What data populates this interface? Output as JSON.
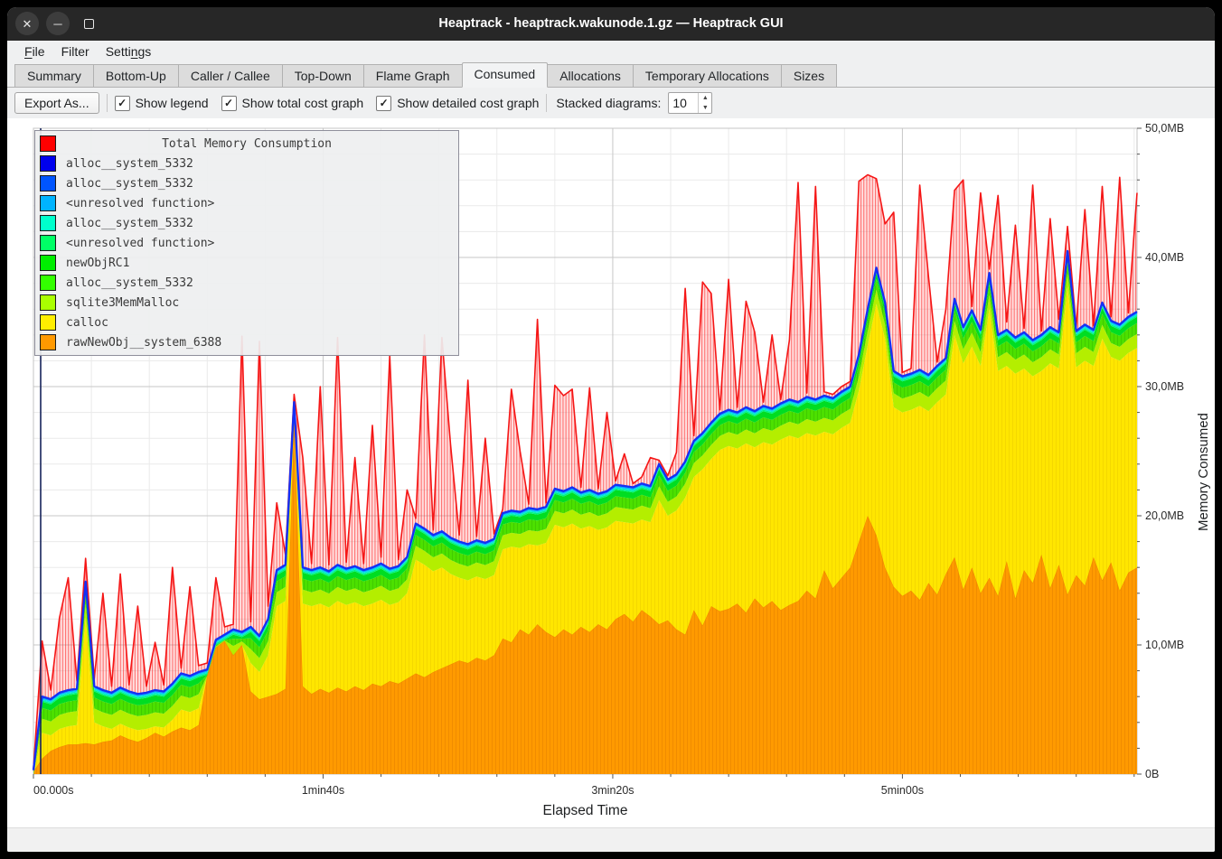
{
  "window": {
    "title": "Heaptrack - heaptrack.wakunode.1.gz — Heaptrack GUI",
    "controls": [
      {
        "name": "close",
        "glyph": "✕"
      },
      {
        "name": "minimize",
        "glyph": "─"
      },
      {
        "name": "maximize",
        "glyph": ""
      }
    ]
  },
  "menu": {
    "items": [
      {
        "label": "File",
        "mnemonic": 0
      },
      {
        "label": "Filter",
        "mnemonic": -1
      },
      {
        "label": "Settings",
        "mnemonic": 5
      }
    ]
  },
  "tabs": [
    {
      "label": "Summary",
      "active": false
    },
    {
      "label": "Bottom-Up",
      "active": false
    },
    {
      "label": "Caller / Callee",
      "active": false
    },
    {
      "label": "Top-Down",
      "active": false
    },
    {
      "label": "Flame Graph",
      "active": false
    },
    {
      "label": "Consumed",
      "active": true
    },
    {
      "label": "Allocations",
      "active": false
    },
    {
      "label": "Temporary Allocations",
      "active": false
    },
    {
      "label": "Sizes",
      "active": false
    }
  ],
  "toolbar": {
    "export_label": "Export As...",
    "checkboxes": [
      {
        "label": "Show legend",
        "checked": true
      },
      {
        "label": "Show total cost graph",
        "checked": true
      },
      {
        "label": "Show detailed cost graph",
        "checked": true
      }
    ],
    "stacked_label": "Stacked diagrams:",
    "stacked_value": "10"
  },
  "chart_data": {
    "type": "area",
    "xlabel": "Elapsed Time",
    "ylabel": "Memory Consumed",
    "ylim": [
      0,
      50
    ],
    "x_range_s": [
      0,
      381
    ],
    "t_step": 3,
    "minor_y_step": 2,
    "minor_x_step": 20,
    "grid": true,
    "y_ticks": [
      {
        "v": 0,
        "label": "0B"
      },
      {
        "v": 10,
        "label": "10,0MB"
      },
      {
        "v": 20,
        "label": "20,0MB"
      },
      {
        "v": 30,
        "label": "30,0MB"
      },
      {
        "v": 40,
        "label": "40,0MB"
      },
      {
        "v": 50,
        "label": "50,0MB"
      }
    ],
    "x_ticks": [
      {
        "t": 0,
        "label": "00.000s"
      },
      {
        "t": 100,
        "label": "1min40s"
      },
      {
        "t": 200,
        "label": "3min20s"
      },
      {
        "t": 300,
        "label": "5min00s"
      }
    ],
    "legend": {
      "rows": [
        {
          "label": "Total Memory Consumption",
          "color": "#ff0000",
          "title": true
        },
        {
          "label": "alloc__system_5332",
          "color": "#0000ee",
          "title": false
        },
        {
          "label": "alloc__system_5332",
          "color": "#0055ff",
          "title": false
        },
        {
          "label": "<unresolved function>",
          "color": "#00b4ff",
          "title": false
        },
        {
          "label": "alloc__system_5332",
          "color": "#00ffcc",
          "title": false
        },
        {
          "label": "<unresolved function>",
          "color": "#00ff66",
          "title": false
        },
        {
          "label": "newObjRC1",
          "color": "#00ee00",
          "title": false
        },
        {
          "label": "alloc__system_5332",
          "color": "#33ff00",
          "title": false
        },
        {
          "label": "sqlite3MemMalloc",
          "color": "#aaff00",
          "title": false
        },
        {
          "label": "calloc",
          "color": "#ffee00",
          "title": false
        },
        {
          "label": "rawNewObj__system_6388",
          "color": "#ff9900",
          "title": false
        }
      ]
    },
    "series": [
      {
        "name": "rawNewObj__system_6388",
        "role": "orange_top",
        "color": "#ff9a00",
        "values": [
          0.2,
          1.2,
          1.8,
          2.1,
          2.3,
          2.3,
          2.4,
          2.3,
          2.5,
          2.6,
          3.0,
          2.7,
          2.5,
          2.8,
          3.2,
          2.9,
          3.3,
          3.6,
          3.4,
          3.8,
          7.6,
          9.8,
          10.3,
          9.2,
          10.0,
          6.4,
          5.8,
          6.0,
          6.2,
          6.6,
          27.5,
          6.8,
          6.2,
          6.6,
          6.3,
          6.7,
          6.4,
          6.8,
          6.5,
          7.0,
          6.8,
          7.2,
          7.0,
          7.4,
          7.8,
          7.5,
          7.9,
          8.2,
          8.5,
          8.8,
          8.6,
          9.0,
          8.8,
          9.2,
          10.5,
          10.2,
          11.2,
          10.8,
          11.6,
          11.0,
          10.6,
          11.2,
          10.8,
          11.4,
          11.0,
          11.6,
          11.2,
          12.0,
          12.4,
          11.8,
          12.7,
          12.2,
          11.6,
          11.9,
          11.2,
          10.8,
          12.7,
          11.5,
          13.0,
          12.6,
          12.8,
          13.2,
          12.5,
          13.6,
          12.9,
          13.4,
          12.7,
          13.1,
          13.4,
          14.2,
          13.6,
          15.8,
          14.4,
          15.2,
          16.0,
          18.0,
          20.0,
          18.5,
          16.0,
          14.5,
          13.8,
          14.2,
          13.5,
          14.8,
          13.9,
          15.5,
          16.8,
          14.3,
          16.0,
          14.0,
          15.2,
          13.8,
          16.5,
          13.6,
          15.8,
          14.8,
          17.0,
          14.4,
          16.2,
          13.9,
          15.4,
          14.6,
          16.8,
          15.0,
          16.4,
          14.2,
          15.6,
          16.0
        ]
      },
      {
        "name": "consumed_stack_top",
        "role": "blue_top",
        "color": "#1430f5",
        "values": [
          0.3,
          6.0,
          5.8,
          6.3,
          6.5,
          6.6,
          14.9,
          6.8,
          6.5,
          6.3,
          6.7,
          6.4,
          6.2,
          6.3,
          6.5,
          6.4,
          7.0,
          7.8,
          7.6,
          7.9,
          8.1,
          10.4,
          10.8,
          11.2,
          11.0,
          11.4,
          10.7,
          12.0,
          15.8,
          16.2,
          28.8,
          16.0,
          15.8,
          16.0,
          15.7,
          16.2,
          15.9,
          16.1,
          15.8,
          16.0,
          16.3,
          15.9,
          16.1,
          16.8,
          19.4,
          19.0,
          18.5,
          18.8,
          18.3,
          18.0,
          17.8,
          18.1,
          17.9,
          18.2,
          20.2,
          20.4,
          20.3,
          20.6,
          20.5,
          20.7,
          22.1,
          21.9,
          22.2,
          21.8,
          22.0,
          21.7,
          21.9,
          22.4,
          22.3,
          22.2,
          22.5,
          22.3,
          24.0,
          22.8,
          23.2,
          24.2,
          25.8,
          26.4,
          27.2,
          27.9,
          28.2,
          28.0,
          28.4,
          28.1,
          28.5,
          28.3,
          28.7,
          29.0,
          28.8,
          29.2,
          29.0,
          29.3,
          29.1,
          29.6,
          30.0,
          32.5,
          36.0,
          39.2,
          36.5,
          31.2,
          30.8,
          31.0,
          31.3,
          30.9,
          31.6,
          32.2,
          36.8,
          34.6,
          35.9,
          34.4,
          38.8,
          34.0,
          34.4,
          33.8,
          34.2,
          33.6,
          34.0,
          34.6,
          34.2,
          40.5,
          34.3,
          34.8,
          34.4,
          36.5,
          35.1,
          34.8,
          35.4,
          35.8
        ]
      },
      {
        "name": "Total Memory Consumption",
        "role": "red_top",
        "color": "#f51616",
        "values": [
          0.4,
          10.3,
          6.5,
          12.1,
          15.2,
          7.2,
          16.7,
          7.4,
          14.0,
          6.8,
          15.5,
          6.9,
          13.0,
          6.8,
          10.2,
          6.9,
          16.0,
          8.2,
          14.5,
          8.4,
          8.6,
          15.2,
          11.4,
          11.6,
          33.9,
          11.8,
          33.5,
          13.0,
          21.0,
          17.0,
          29.4,
          24.5,
          16.3,
          30.0,
          16.2,
          33.8,
          16.4,
          24.5,
          16.3,
          27.0,
          16.8,
          32.4,
          16.6,
          22.0,
          19.8,
          34.0,
          18.9,
          33.8,
          25.5,
          18.5,
          30.5,
          18.4,
          26.0,
          18.6,
          20.5,
          29.8,
          25.0,
          20.9,
          35.2,
          21.0,
          30.1,
          29.3,
          29.8,
          22.2,
          29.9,
          22.1,
          28.0,
          22.7,
          24.8,
          22.5,
          23.0,
          24.5,
          24.3,
          23.1,
          24.9,
          37.6,
          26.2,
          38.1,
          37.2,
          28.2,
          38.3,
          28.4,
          36.6,
          34.2,
          28.8,
          34.0,
          29.0,
          33.6,
          45.8,
          29.5,
          45.5,
          29.6,
          29.4,
          30.0,
          30.4,
          45.9,
          46.4,
          46.1,
          42.6,
          43.5,
          31.1,
          31.4,
          45.6,
          38.5,
          31.9,
          36.0,
          45.2,
          46.0,
          36.2,
          45.0,
          39.1,
          44.8,
          35.0,
          42.5,
          34.5,
          45.6,
          34.3,
          43.0,
          35.2,
          42.4,
          34.6,
          43.7,
          34.7,
          45.5,
          35.4,
          46.2,
          35.7,
          45.0
        ]
      }
    ],
    "band_model": {
      "green_stack_mb": 2.4,
      "cyan_stack_mb": 0.4,
      "calloc_color": "#ffe600",
      "green_bands": [
        {
          "name": "sqlite3MemMalloc",
          "color": "#b4ee00",
          "frac": 0.45
        },
        {
          "name": "alloc__system_5332",
          "color": "#4ce000",
          "frac": 0.35
        },
        {
          "name": "newObjRC1",
          "color": "#00dd22",
          "frac": 0.2
        }
      ],
      "cyan_bands": [
        {
          "name": "<unresolved function>",
          "color": "#00f582",
          "frac": 0.3
        },
        {
          "name": "alloc__system_5332",
          "color": "#00e8d4",
          "frac": 0.25
        },
        {
          "name": "<unresolved function>",
          "color": "#00b4ff",
          "frac": 0.25
        },
        {
          "name": "alloc__system_5332",
          "color": "#0051ff",
          "frac": 0.2
        }
      ]
    }
  }
}
